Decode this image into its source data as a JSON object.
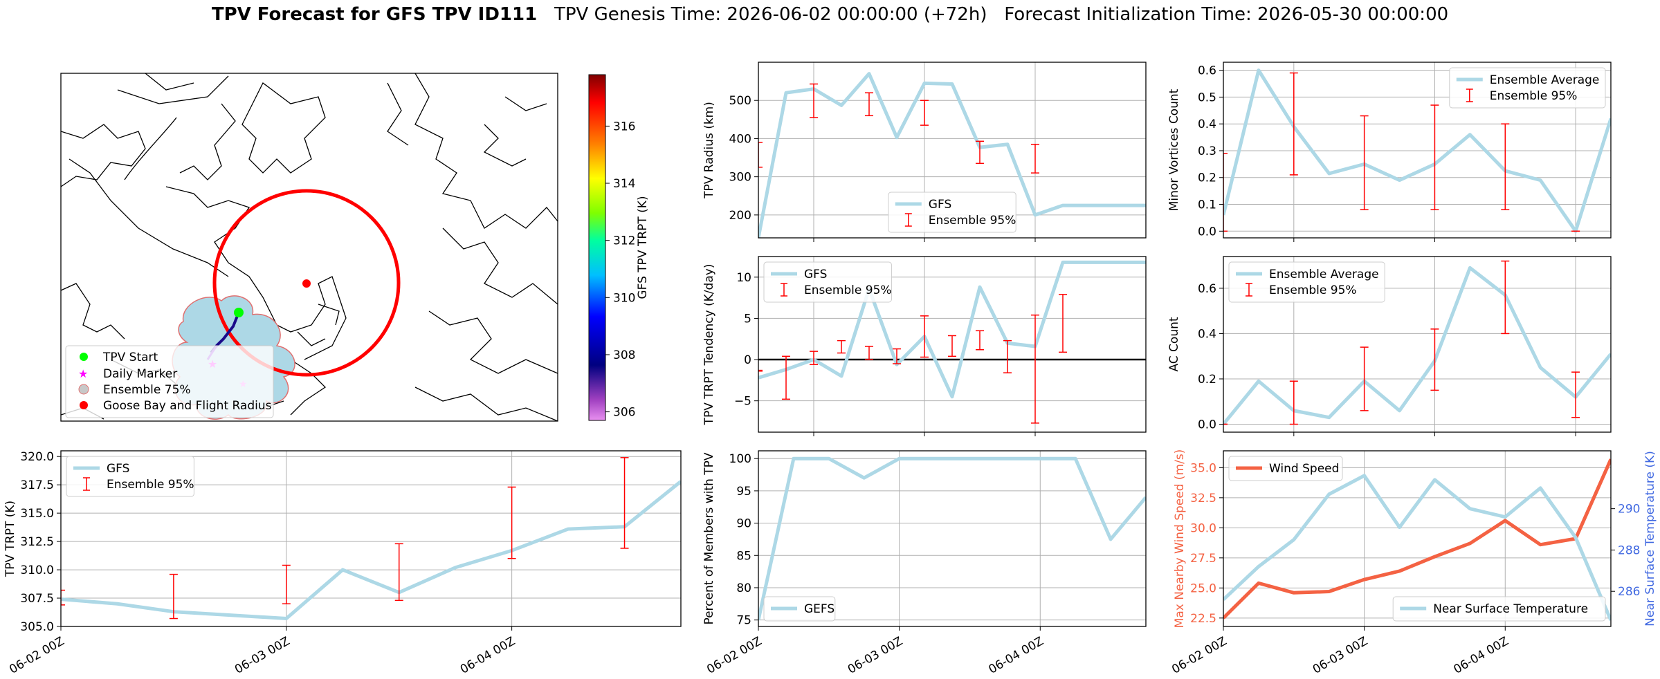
{
  "figure": {
    "title_bold": "TPV Forecast for GFS TPV ID111",
    "title_genesis": "TPV Genesis Time: 2026-06-02 00:00:00 (+72h)",
    "title_init": "Forecast Initialization Time: 2026-05-30 00:00:00"
  },
  "colors": {
    "gfs_line": "#add8e6",
    "error_bar": "#ff0000",
    "wind_line": "#f46243",
    "right_axis_label": "#4169e1",
    "left_axis_label": "#f46243",
    "track": "#00008b",
    "start_marker": "#00ff00",
    "daily_marker": "#ff00ff",
    "goose_bay": "#ff0000",
    "ensemble_fill": "#add8e6"
  },
  "map": {
    "legend": [
      "TPV Start",
      "Daily Marker",
      "Ensemble 75%",
      "Goose Bay and Flight Radius"
    ],
    "colorbar": {
      "label": "GFS TPV TRPT (K)",
      "ticks": [
        "306",
        "308",
        "310",
        "312",
        "314",
        "316"
      ],
      "range": [
        305.7,
        317.8
      ]
    }
  },
  "chart_data": [
    {
      "id": "radius",
      "type": "line",
      "ylabel": "TPV Radius (km)",
      "yticks": [
        "200",
        "300",
        "400",
        "500"
      ],
      "ylim": [
        140,
        600
      ],
      "xlim": [
        0,
        14
      ],
      "x_tick_positions": [
        2,
        6,
        10
      ],
      "x_tick_labels": [],
      "legend": [
        "GFS",
        "Ensemble 95%"
      ],
      "legend_pos": "lower-center",
      "series": [
        {
          "name": "GFS",
          "x": [
            0,
            1,
            2,
            3,
            4,
            5,
            6,
            7,
            8,
            9,
            10,
            11,
            12,
            13,
            14
          ],
          "values": [
            140,
            520,
            530,
            487,
            570,
            403,
            545,
            543,
            377,
            385,
            200,
            225,
            225,
            225,
            225
          ]
        }
      ],
      "x_series_end": 14,
      "errorbars": [
        {
          "x": 0,
          "lo": 325,
          "hi": 390
        },
        {
          "x": 2,
          "lo": 455,
          "hi": 543
        },
        {
          "x": 4,
          "lo": 460,
          "hi": 520
        },
        {
          "x": 6,
          "lo": 435,
          "hi": 500
        },
        {
          "x": 8,
          "lo": 335,
          "hi": 393
        },
        {
          "x": 10,
          "lo": 310,
          "hi": 385
        }
      ]
    },
    {
      "id": "minor",
      "type": "line",
      "ylabel": "Minor Vortices Count",
      "yticks": [
        "0.0",
        "0.1",
        "0.2",
        "0.3",
        "0.4",
        "0.5",
        "0.6"
      ],
      "ylim": [
        -0.025,
        0.63
      ],
      "xlim": [
        0,
        11
      ],
      "x_tick_positions": [
        2,
        6,
        10
      ],
      "x_tick_labels": [],
      "legend": [
        "Ensemble Average",
        "Ensemble 95%"
      ],
      "legend_pos": "upper-right",
      "series": [
        {
          "name": "Ensemble Average",
          "x": [
            0,
            1,
            2,
            3,
            4,
            5,
            6,
            7,
            8,
            9,
            10,
            11
          ],
          "values": [
            0.06,
            0.6,
            0.39,
            0.215,
            0.25,
            0.19,
            0.25,
            0.36,
            0.225,
            0.19,
            0.0,
            0.42
          ]
        }
      ],
      "errorbars": [
        {
          "x": 0,
          "lo": 0.0,
          "hi": 0.29
        },
        {
          "x": 2,
          "lo": 0.21,
          "hi": 0.59
        },
        {
          "x": 4,
          "lo": 0.08,
          "hi": 0.43
        },
        {
          "x": 6,
          "lo": 0.08,
          "hi": 0.47
        },
        {
          "x": 8,
          "lo": 0.08,
          "hi": 0.4
        },
        {
          "x": 10,
          "lo": 0.0,
          "hi": 0.0
        }
      ]
    },
    {
      "id": "tendency",
      "type": "line",
      "ylabel": "TPV TRPT Tendency (K/day)",
      "yticks": [
        "−5",
        "0",
        "5",
        "10"
      ],
      "ylim": [
        -8.8,
        12.5
      ],
      "xlim": [
        0,
        14
      ],
      "x_tick_positions": [
        2,
        6,
        10
      ],
      "x_tick_labels": [],
      "zero_line": true,
      "legend": [
        "GFS",
        "Ensemble 95%"
      ],
      "legend_pos": "upper-left",
      "series": [
        {
          "name": "GFS",
          "x": [
            0,
            1,
            2,
            3,
            4,
            5,
            6,
            7,
            8,
            9,
            10,
            11,
            12,
            13,
            14
          ],
          "values": [
            -2.2,
            -1.2,
            0.0,
            -2.0,
            8.6,
            -0.6,
            2.8,
            -4.5,
            8.8,
            2.0,
            1.6,
            11.8,
            11.8,
            11.8,
            11.8
          ]
        }
      ],
      "errorbars": [
        {
          "x": 0,
          "lo": -1.4,
          "hi": -1.3
        },
        {
          "x": 1,
          "lo": -4.8,
          "hi": 0.4
        },
        {
          "x": 2,
          "lo": -0.6,
          "hi": 1.0
        },
        {
          "x": 3,
          "lo": 0.8,
          "hi": 2.3
        },
        {
          "x": 4,
          "lo": 0.0,
          "hi": 1.6
        },
        {
          "x": 5,
          "lo": -0.5,
          "hi": 1.3
        },
        {
          "x": 6,
          "lo": 0.3,
          "hi": 5.3
        },
        {
          "x": 7,
          "lo": 0.4,
          "hi": 2.9
        },
        {
          "x": 8,
          "lo": 1.2,
          "hi": 3.5
        },
        {
          "x": 9,
          "lo": -1.6,
          "hi": 2.3
        },
        {
          "x": 10,
          "lo": -7.7,
          "hi": 5.4
        },
        {
          "x": 11,
          "lo": 0.9,
          "hi": 7.9
        }
      ]
    },
    {
      "id": "ac",
      "type": "line",
      "ylabel": "AC Count",
      "yticks": [
        "0.0",
        "0.2",
        "0.4",
        "0.6"
      ],
      "ylim": [
        -0.035,
        0.74
      ],
      "xlim": [
        0,
        11
      ],
      "x_tick_positions": [
        2,
        6,
        10
      ],
      "x_tick_labels": [],
      "legend": [
        "Ensemble Average",
        "Ensemble 95%"
      ],
      "legend_pos": "upper-left",
      "series": [
        {
          "name": "Ensemble Average",
          "x": [
            0,
            1,
            2,
            3,
            4,
            5,
            6,
            7,
            8,
            9,
            10,
            11
          ],
          "values": [
            0.0,
            0.19,
            0.06,
            0.03,
            0.19,
            0.06,
            0.28,
            0.69,
            0.57,
            0.25,
            0.12,
            0.31
          ]
        }
      ],
      "errorbars": [
        {
          "x": 0,
          "lo": 0.0,
          "hi": 0.0
        },
        {
          "x": 2,
          "lo": 0.0,
          "hi": 0.19
        },
        {
          "x": 4,
          "lo": 0.06,
          "hi": 0.34
        },
        {
          "x": 6,
          "lo": 0.15,
          "hi": 0.42
        },
        {
          "x": 8,
          "lo": 0.4,
          "hi": 0.72
        },
        {
          "x": 10,
          "lo": 0.03,
          "hi": 0.23
        }
      ]
    },
    {
      "id": "trpt",
      "type": "line",
      "ylabel": "TPV TRPT (K)",
      "yticks": [
        "305.0",
        "307.5",
        "310.0",
        "312.5",
        "315.0",
        "317.5",
        "320.0"
      ],
      "ylim": [
        305.0,
        320.5
      ],
      "xlim": [
        0,
        11
      ],
      "x_tick_positions": [
        0,
        4,
        8
      ],
      "x_tick_labels": [
        "06-02 00Z",
        "06-03 00Z",
        "06-04 00Z"
      ],
      "legend": [
        "GFS",
        "Ensemble 95%"
      ],
      "legend_pos": "upper-left",
      "series": [
        {
          "name": "GFS",
          "x": [
            0,
            1,
            2,
            3,
            4,
            5,
            6,
            7,
            8,
            9,
            10,
            11
          ],
          "values": [
            307.4,
            307.0,
            306.3,
            306.0,
            305.7,
            310.0,
            308.0,
            310.2,
            311.7,
            313.6,
            313.8,
            317.8
          ]
        }
      ],
      "errorbars": [
        {
          "x": 0,
          "lo": 306.9,
          "hi": 308.2
        },
        {
          "x": 2,
          "lo": 305.7,
          "hi": 309.6
        },
        {
          "x": 4,
          "lo": 307.0,
          "hi": 310.4
        },
        {
          "x": 6,
          "lo": 307.3,
          "hi": 312.3
        },
        {
          "x": 8,
          "lo": 311.0,
          "hi": 317.3
        },
        {
          "x": 10,
          "lo": 311.9,
          "hi": 319.9
        }
      ]
    },
    {
      "id": "percent",
      "type": "line",
      "ylabel": "Percent of Members with TPV",
      "yticks": [
        "75",
        "80",
        "85",
        "90",
        "95",
        "100"
      ],
      "ylim": [
        74.0,
        101.2
      ],
      "xlim": [
        0,
        11
      ],
      "x_tick_positions": [
        0,
        4,
        8
      ],
      "x_tick_labels": [
        "06-02 00Z",
        "06-03 00Z",
        "06-04 00Z"
      ],
      "legend": [
        "GEFS"
      ],
      "legend_pos": "lower-left",
      "series": [
        {
          "name": "GEFS",
          "x": [
            0,
            1,
            2,
            3,
            4,
            5,
            6,
            7,
            8,
            9,
            10,
            11
          ],
          "values": [
            75,
            100,
            100,
            97,
            100,
            100,
            100,
            100,
            100,
            100,
            87.5,
            94
          ]
        }
      ],
      "errorbars": []
    },
    {
      "id": "wind",
      "type": "line",
      "ylabel": "Max Nearby Wind Speed (m/s)",
      "ylabel_right": "Near Surface Temperature (K)",
      "yticks": [
        "22.5",
        "25.0",
        "27.5",
        "30.0",
        "32.5",
        "35.0"
      ],
      "yticks_right": [
        "286",
        "288",
        "290"
      ],
      "ylim": [
        21.8,
        36.4
      ],
      "ylim_right": [
        284.3,
        292.8
      ],
      "xlim": [
        0,
        11
      ],
      "x_tick_positions": [
        0,
        4,
        8
      ],
      "x_tick_labels": [
        "06-02 00Z",
        "06-03 00Z",
        "06-04 00Z"
      ],
      "legend": [
        "Wind Speed"
      ],
      "legend_right": [
        "Near Surface Temperature"
      ],
      "legend_pos": "upper-left",
      "legend_right_pos": "lower-right",
      "series": [
        {
          "name": "Wind Speed",
          "axis": "left",
          "x": [
            0,
            1,
            2,
            3,
            4,
            5,
            6,
            7,
            8,
            9,
            10,
            11
          ],
          "values": [
            22.5,
            25.4,
            24.6,
            24.7,
            25.7,
            26.4,
            27.6,
            28.7,
            30.6,
            28.6,
            29.1,
            35.7
          ]
        },
        {
          "name": "Near Surface Temperature",
          "axis": "right",
          "x": [
            0,
            1,
            2,
            3,
            4,
            5,
            6,
            7,
            8,
            9,
            10,
            11
          ],
          "values": [
            285.6,
            287.2,
            288.5,
            290.7,
            291.6,
            289.1,
            291.4,
            290.0,
            289.6,
            291.0,
            288.6,
            284.6
          ]
        }
      ],
      "errorbars": []
    }
  ]
}
